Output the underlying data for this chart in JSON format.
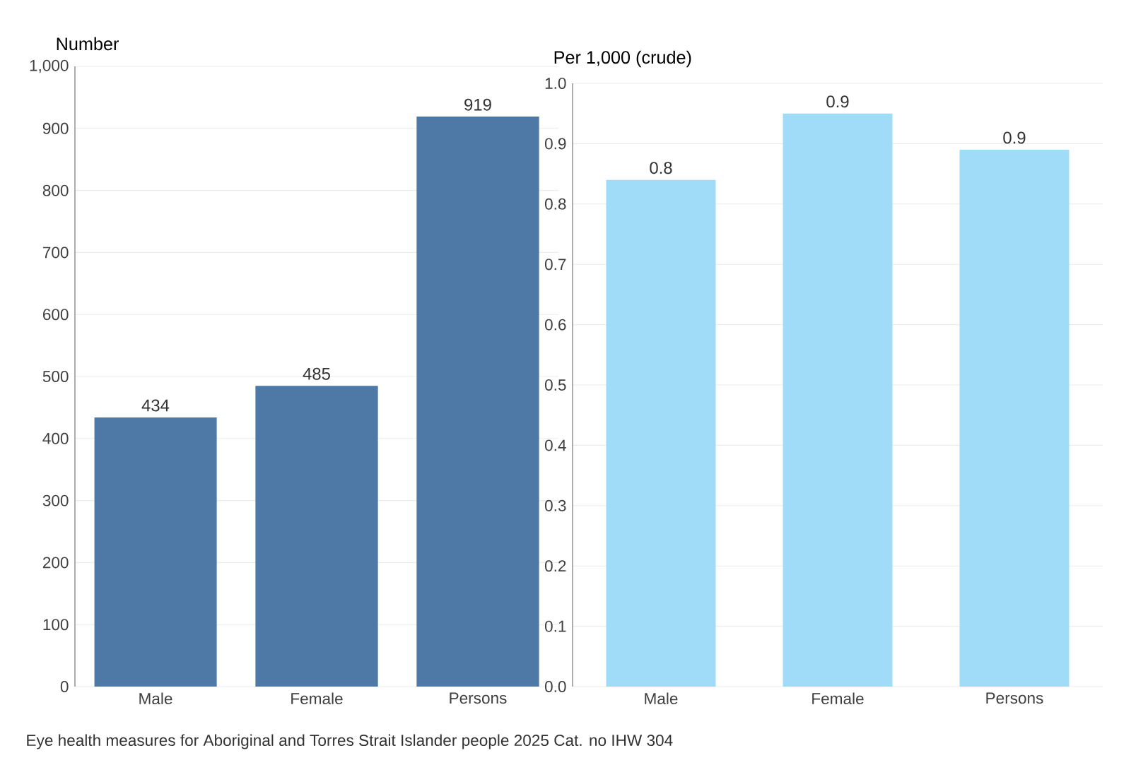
{
  "chart_data": [
    {
      "type": "bar",
      "ylabel": "Number",
      "categories": [
        "Male",
        "Female",
        "Persons"
      ],
      "values": [
        434,
        485,
        919
      ],
      "color": "#4e79a7",
      "data_labels": true,
      "grid": "y",
      "ylim": [
        0,
        1000
      ],
      "yticks": [
        0,
        100,
        200,
        300,
        400,
        500,
        600,
        700,
        800,
        900,
        {
          "value": 1000,
          "label": "1,000"
        }
      ],
      "annotations": [
        "Eye health measures for Aboriginal and Torres Strait Islander people 2025 Cat. no IHW 304"
      ]
    },
    {
      "type": "bar",
      "ylabel": "Per 1,000 (crude)",
      "categories": [
        "Male",
        "Female",
        "Persons"
      ],
      "values": [
        0.84,
        0.95,
        0.89
      ],
      "value_labels": [
        "0.8",
        "0.9",
        "0.9"
      ],
      "color": "#a0dcf8",
      "grid": "y",
      "ylim": [
        0,
        1
      ],
      "yticks": [
        {
          "value": 0,
          "label": "0.0"
        },
        0.1,
        0.2,
        0.3,
        0.4,
        0.5,
        0.6,
        0.7,
        0.8,
        0.9,
        {
          "value": 1,
          "label": "1.0"
        }
      ]
    }
  ]
}
